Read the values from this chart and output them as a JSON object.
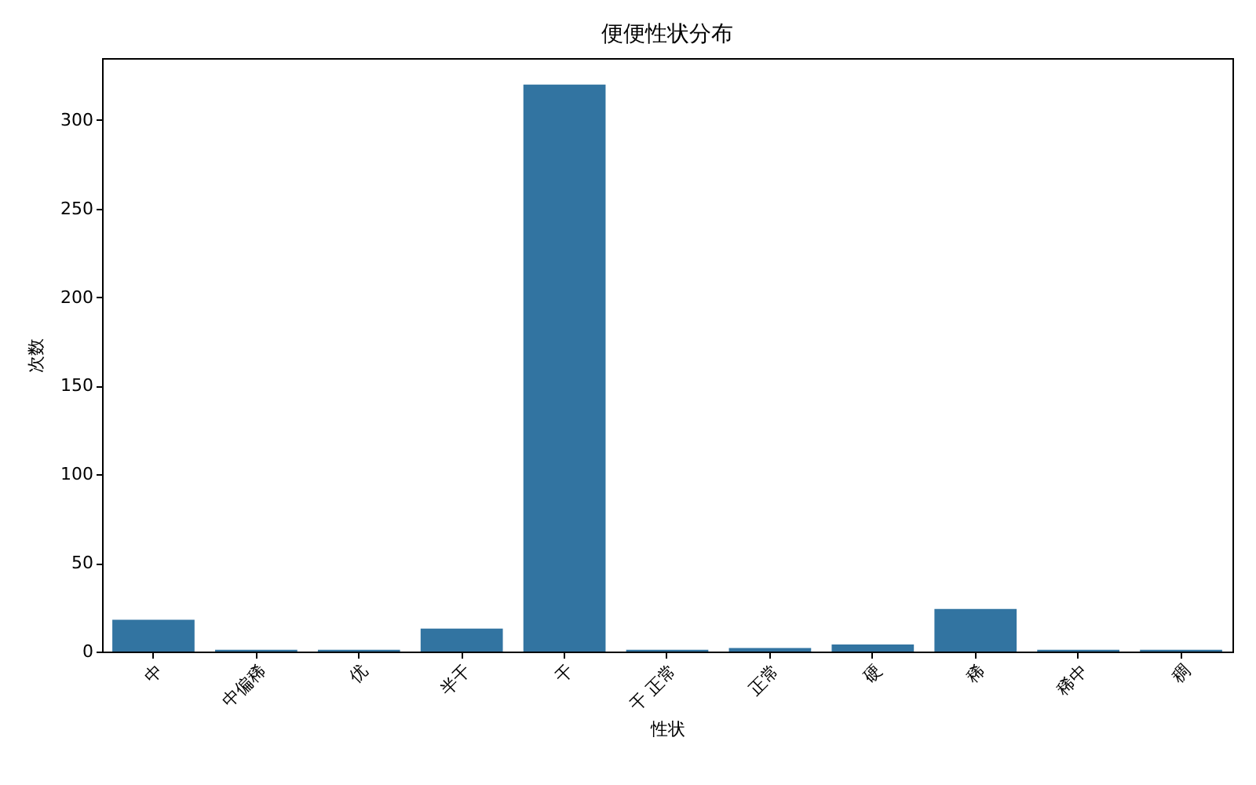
{
  "chart_data": {
    "type": "bar",
    "title": "便便性状分布",
    "xlabel": "性状",
    "ylabel": "次数",
    "categories": [
      "中",
      "中偏稀",
      "优",
      "半干",
      "干",
      "干 正常",
      "正常",
      "硬",
      "稀",
      "稀中",
      "稠"
    ],
    "values": [
      18,
      1,
      1,
      13,
      320,
      1,
      2,
      4,
      24,
      1,
      1
    ],
    "color": "#3274a1",
    "ylim": [
      0,
      335
    ],
    "yticks": [
      0,
      50,
      100,
      150,
      200,
      250,
      300
    ],
    "grid": false
  }
}
